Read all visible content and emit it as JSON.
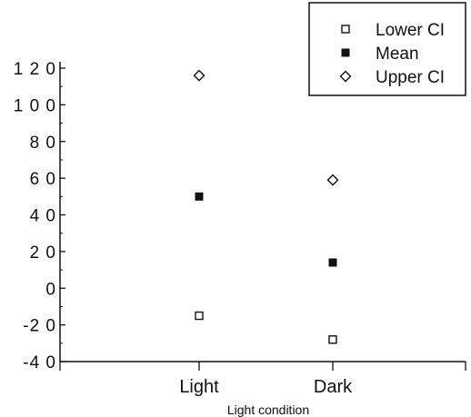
{
  "chart_data": {
    "type": "scatter",
    "title": "",
    "xlabel": "Light condition",
    "ylabel": "",
    "categories": [
      "Light",
      "Dark"
    ],
    "ylim": [
      -40,
      120
    ],
    "yticks": [
      -40,
      -20,
      0,
      20,
      40,
      60,
      80,
      100,
      120
    ],
    "ytick_labels": [
      "-4 0",
      "-2 0",
      "0",
      "2 0",
      "4 0",
      "6 0",
      "8 0",
      "1 0 0",
      "1 2 0"
    ],
    "grid": false,
    "legend_position": "top-right",
    "series": [
      {
        "name": "Lower CI",
        "marker": "open-square",
        "color": "#111111",
        "values": [
          -15,
          -28
        ]
      },
      {
        "name": "Mean",
        "marker": "filled-square",
        "color": "#111111",
        "values": [
          50,
          14
        ]
      },
      {
        "name": "Upper CI",
        "marker": "open-diamond",
        "color": "#111111",
        "values": [
          116,
          59
        ]
      }
    ]
  }
}
